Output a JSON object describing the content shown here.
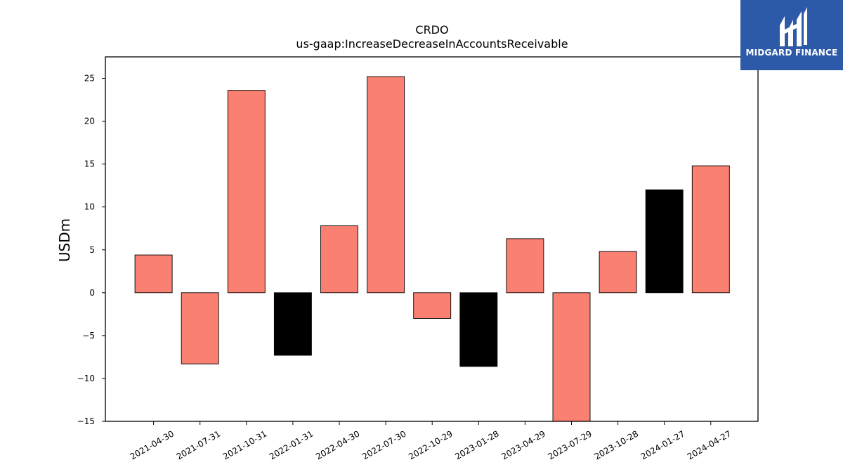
{
  "chart_data": {
    "type": "bar",
    "title": "CRDO",
    "subtitle": "us-gaap:IncreaseDecreaseInAccountsReceivable",
    "xlabel": "",
    "ylabel": "USDm",
    "ylim": [
      -15,
      27.5
    ],
    "yticks": [
      -15,
      -10,
      -5,
      0,
      5,
      10,
      15,
      20,
      25
    ],
    "ytick_labels": [
      "−15",
      "−10",
      "−5",
      "0",
      "5",
      "10",
      "15",
      "20",
      "25"
    ],
    "categories": [
      "2021-04-30",
      "2021-07-31",
      "2021-10-31",
      "2022-01-31",
      "2022-04-30",
      "2022-07-30",
      "2022-10-29",
      "2023-01-28",
      "2023-04-29",
      "2023-07-29",
      "2023-10-28",
      "2024-01-27",
      "2024-04-27"
    ],
    "values": [
      4.4,
      -8.3,
      23.6,
      -7.3,
      7.8,
      25.2,
      -3.0,
      -8.6,
      6.3,
      -15.0,
      4.8,
      12.0,
      14.8
    ],
    "bar_colors": [
      "#fa8072",
      "#fa8072",
      "#fa8072",
      "#000000",
      "#fa8072",
      "#fa8072",
      "#fa8072",
      "#000000",
      "#fa8072",
      "#fa8072",
      "#fa8072",
      "#000000",
      "#fa8072"
    ],
    "grid": false,
    "legend": "none"
  },
  "logo": {
    "text": "MIDGARD FINANCE",
    "background": "#2d5aa8",
    "icon": "midgard-logo-icon"
  }
}
